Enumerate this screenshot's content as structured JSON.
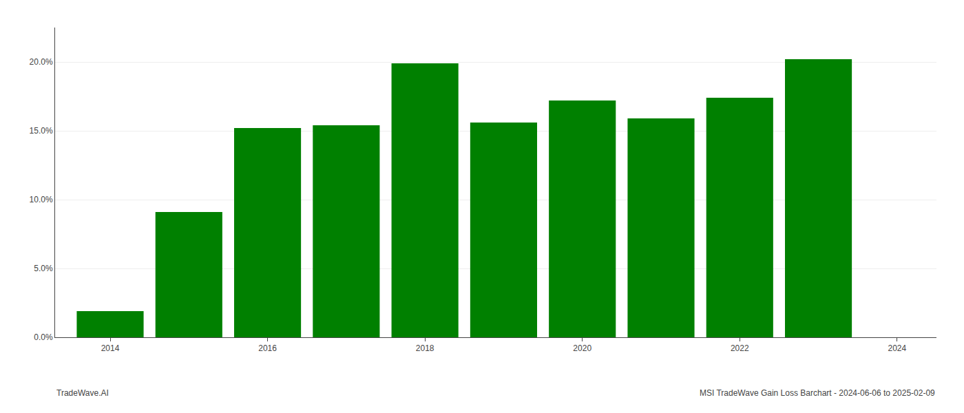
{
  "chart_data": {
    "type": "bar",
    "x": [
      2014,
      2015,
      2016,
      2017,
      2018,
      2019,
      2020,
      2021,
      2022,
      2023
    ],
    "values": [
      0.019,
      0.091,
      0.152,
      0.154,
      0.199,
      0.156,
      0.172,
      0.159,
      0.174,
      0.202
    ],
    "color": "#008000",
    "xlim": [
      2013.3,
      2024.5
    ],
    "xticks": [
      2014,
      2016,
      2018,
      2020,
      2022,
      2024
    ],
    "ylim": [
      0,
      0.225
    ],
    "yticks": [
      {
        "value": 0.0,
        "label": "0.0%"
      },
      {
        "value": 0.05,
        "label": "5.0%"
      },
      {
        "value": 0.1,
        "label": "10.0%"
      },
      {
        "value": 0.15,
        "label": "15.0%"
      },
      {
        "value": 0.2,
        "label": "20.0%"
      }
    ],
    "grid": true,
    "annotations": [
      "TradeWave.AI",
      "MSI TradeWave Gain Loss Barchart - 2024-06-06 to 2025-02-09"
    ]
  }
}
